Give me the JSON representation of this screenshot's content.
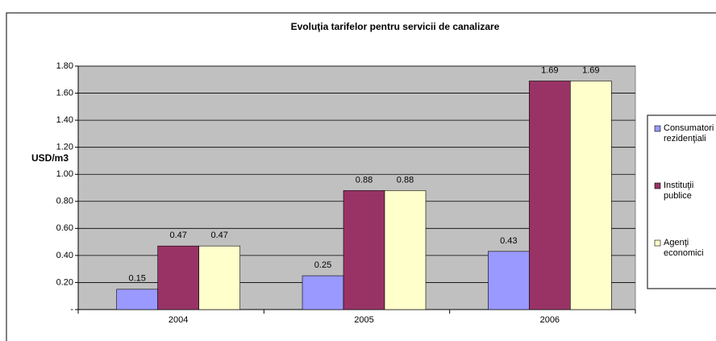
{
  "chart_data": {
    "type": "bar",
    "title": "Evoluţia tarifelor pentru servicii de canalizare",
    "y_label": "USD/m3",
    "categories": [
      "2004",
      "2005",
      "2006"
    ],
    "series": [
      {
        "name": "Consumatori rezidenţiali",
        "color": "#9999ff",
        "values": [
          0.15,
          0.25,
          0.43
        ]
      },
      {
        "name": "Instituţii publice",
        "color": "#993366",
        "values": [
          0.47,
          0.88,
          1.69
        ]
      },
      {
        "name": "Agenţi economici",
        "color": "#ffffcc",
        "values": [
          0.47,
          0.88,
          1.69
        ]
      }
    ],
    "ylim": [
      0,
      1.8
    ],
    "yticks": [
      {
        "value": 0,
        "label": "-"
      },
      {
        "value": 0.2,
        "label": "0.20"
      },
      {
        "value": 0.4,
        "label": "0.40"
      },
      {
        "value": 0.6,
        "label": "0.60"
      },
      {
        "value": 0.8,
        "label": "0.80"
      },
      {
        "value": 1.0,
        "label": "1.00"
      },
      {
        "value": 1.2,
        "label": "1.20"
      },
      {
        "value": 1.4,
        "label": "1.40"
      },
      {
        "value": 1.6,
        "label": "1.60"
      },
      {
        "value": 1.8,
        "label": "1.80"
      }
    ],
    "grid": true,
    "legend": "right",
    "plot_background": "#c0c0c0"
  }
}
